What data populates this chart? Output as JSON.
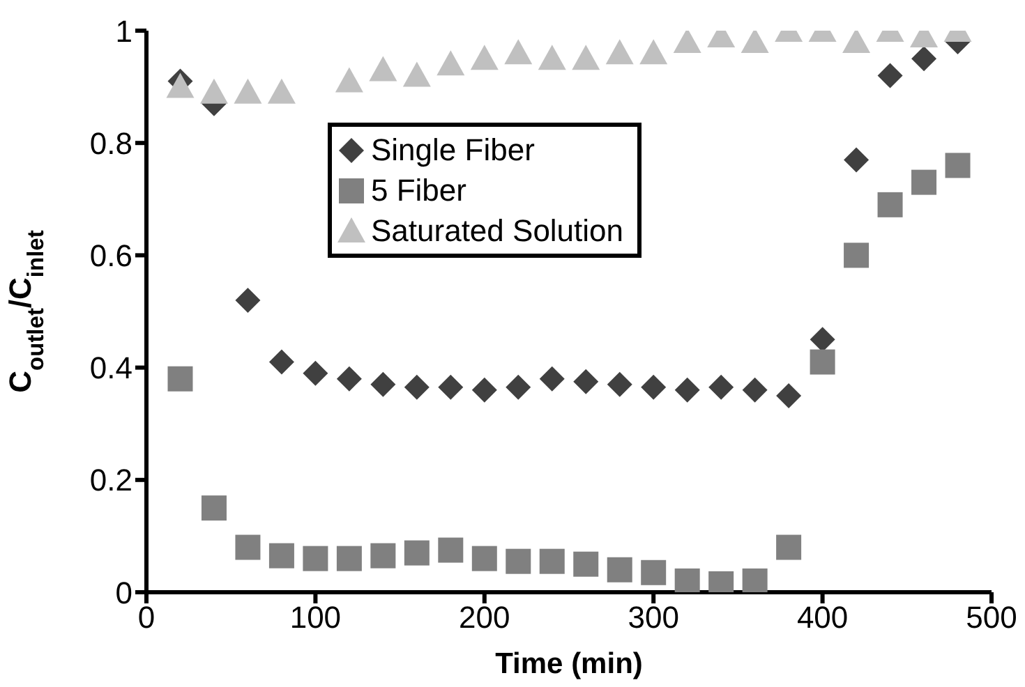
{
  "chart_data": {
    "type": "scatter",
    "xlabel": "Time (min)",
    "ylabel": "C$_{outlet}$/C$_{inlet}$",
    "xlim": [
      0,
      500
    ],
    "xticks": [
      0,
      100,
      200,
      300,
      400,
      500
    ],
    "ylim": [
      0,
      1
    ],
    "yticks": [
      0,
      0.2,
      0.4,
      0.6,
      0.8,
      1
    ],
    "grid": false,
    "legend": "top",
    "x": [
      20,
      40,
      60,
      80,
      100,
      120,
      140,
      160,
      180,
      200,
      220,
      240,
      260,
      280,
      300,
      320,
      340,
      360,
      380,
      400,
      420,
      440,
      460,
      480
    ],
    "series": [
      {
        "name": "Single Fiber",
        "color": "#404040",
        "marker": "diamond",
        "values": [
          0.91,
          0.87,
          0.52,
          0.41,
          0.39,
          0.38,
          0.37,
          0.365,
          0.365,
          0.36,
          0.365,
          0.38,
          0.375,
          0.37,
          0.365,
          0.36,
          0.365,
          0.36,
          0.35,
          0.45,
          0.77,
          0.92,
          0.95,
          0.98
        ]
      },
      {
        "name": "5 Fiber",
        "color": "#808080",
        "marker": "square",
        "values": [
          0.38,
          0.15,
          0.08,
          0.065,
          0.06,
          0.06,
          0.065,
          0.07,
          0.075,
          0.06,
          0.055,
          0.055,
          0.05,
          0.04,
          0.035,
          0.02,
          0.015,
          0.02,
          0.08,
          0.41,
          0.6,
          0.69,
          0.73,
          0.76
        ]
      },
      {
        "name": "Saturated Solution",
        "color": "#c0c0c0",
        "marker": "triangle",
        "values": [
          0.9,
          0.89,
          0.89,
          0.89,
          null,
          0.91,
          0.93,
          0.92,
          0.94,
          0.95,
          0.96,
          0.95,
          0.95,
          0.96,
          0.96,
          0.98,
          0.99,
          0.98,
          1.0,
          1.0,
          0.98,
          1.0,
          0.99,
          1.0
        ]
      }
    ]
  }
}
